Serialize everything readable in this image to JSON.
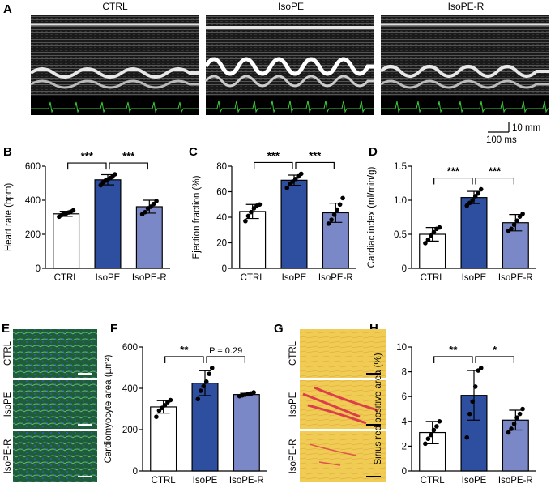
{
  "panels": {
    "A": "A",
    "B": "B",
    "C": "C",
    "D": "D",
    "E": "E",
    "F": "F",
    "G": "G",
    "H": "H"
  },
  "mmode": {
    "titles": [
      "CTRL",
      "IsoPE",
      "IsoPE-R"
    ],
    "scale_vertical": "10 mm",
    "scale_horizontal": "100 ms"
  },
  "histology_E": {
    "rows": [
      "CTRL",
      "IsoPE",
      "IsoPE-R"
    ]
  },
  "histology_G": {
    "rows": [
      "CTRL",
      "IsoPE",
      "IsoPE-R"
    ]
  },
  "colors": {
    "ctrl": "#ffffff",
    "isope": "#2e4fa0",
    "isoper": "#7b88c7"
  },
  "chart_data": [
    {
      "id": "B",
      "type": "bar",
      "categories": [
        "CTRL",
        "IsoPE",
        "IsoPE-R"
      ],
      "values": [
        320,
        520,
        362
      ],
      "errors": [
        15,
        30,
        38
      ],
      "points": [
        [
          303,
          312,
          318,
          322,
          328,
          333,
          340
        ],
        [
          488,
          505,
          515,
          522,
          530,
          538,
          552
        ],
        [
          318,
          330,
          352,
          362,
          378,
          395
        ]
      ],
      "ylabel": "Heart rate (bpm)",
      "ylim": [
        0,
        600
      ],
      "yticks": [
        0,
        200,
        400,
        600
      ],
      "significance": [
        {
          "from": 0,
          "to": 1,
          "label": "***"
        },
        {
          "from": 1,
          "to": 2,
          "label": "***"
        }
      ]
    },
    {
      "id": "C",
      "type": "bar",
      "categories": [
        "CTRL",
        "IsoPE",
        "IsoPE-R"
      ],
      "values": [
        44.5,
        69,
        43.5
      ],
      "errors": [
        5.5,
        4,
        7.5
      ],
      "points": [
        [
          37,
          41,
          44,
          47,
          49,
          50
        ],
        [
          63,
          66,
          68,
          70,
          72,
          74
        ],
        [
          35,
          38,
          42,
          46,
          50,
          55
        ]
      ],
      "ylabel": "Ejection fraction (%)",
      "ylim": [
        0,
        80
      ],
      "yticks": [
        0,
        20,
        40,
        60,
        80
      ],
      "significance": [
        {
          "from": 0,
          "to": 1,
          "label": "***"
        },
        {
          "from": 1,
          "to": 2,
          "label": "***"
        }
      ]
    },
    {
      "id": "D",
      "type": "bar",
      "categories": [
        "CTRL",
        "IsoPE",
        "IsoPE-R"
      ],
      "values": [
        0.5,
        1.04,
        0.67
      ],
      "errors": [
        0.1,
        0.09,
        0.12
      ],
      "points": [
        [
          0.37,
          0.42,
          0.48,
          0.53,
          0.58,
          0.6
        ],
        [
          0.92,
          0.96,
          1.0,
          1.06,
          1.1,
          1.16
        ],
        [
          0.55,
          0.58,
          0.64,
          0.7,
          0.76,
          0.8
        ]
      ],
      "ylabel": "Cardiac index (ml/min/g)",
      "ylim": [
        0,
        1.5
      ],
      "yticks": [
        "0",
        "0.5",
        "1.0",
        "1.5"
      ],
      "significance": [
        {
          "from": 0,
          "to": 1,
          "label": "***"
        },
        {
          "from": 1,
          "to": 2,
          "label": "***"
        }
      ]
    },
    {
      "id": "F",
      "type": "bar",
      "categories": [
        "CTRL",
        "IsoPE",
        "IsoPE-R"
      ],
      "values": [
        310,
        425,
        370
      ],
      "errors": [
        30,
        60,
        6
      ],
      "points": [
        [
          262,
          292,
          305,
          318,
          333,
          343
        ],
        [
          348,
          388,
          410,
          432,
          470,
          498
        ],
        [
          362,
          366,
          369,
          372,
          375,
          380
        ]
      ],
      "ylabel": "Cardiomyocyte area (µm²)",
      "ylim": [
        0,
        600
      ],
      "yticks": [
        0,
        200,
        400,
        600
      ],
      "significance": [
        {
          "from": 0,
          "to": 1,
          "label": "**"
        },
        {
          "from": 1,
          "to": 2,
          "label": "P = 0.29"
        }
      ]
    },
    {
      "id": "H",
      "type": "bar",
      "categories": [
        "CTRL",
        "IsoPE",
        "IsoPE-R"
      ],
      "values": [
        3.1,
        6.1,
        4.1
      ],
      "errors": [
        0.9,
        2.0,
        0.8
      ],
      "points": [
        [
          2.2,
          2.6,
          2.9,
          3.3,
          3.6,
          4.0
        ],
        [
          2.7,
          4.6,
          5.6,
          6.8,
          8.1,
          8.3
        ],
        [
          3.1,
          3.4,
          3.8,
          4.3,
          4.6,
          5.0
        ]
      ],
      "ylabel": "Sirius red positive area (%)",
      "ylim": [
        0,
        10
      ],
      "yticks": [
        0,
        2,
        4,
        6,
        8,
        10
      ],
      "significance": [
        {
          "from": 0,
          "to": 1,
          "label": "**"
        },
        {
          "from": 1,
          "to": 2,
          "label": "*"
        }
      ]
    }
  ]
}
